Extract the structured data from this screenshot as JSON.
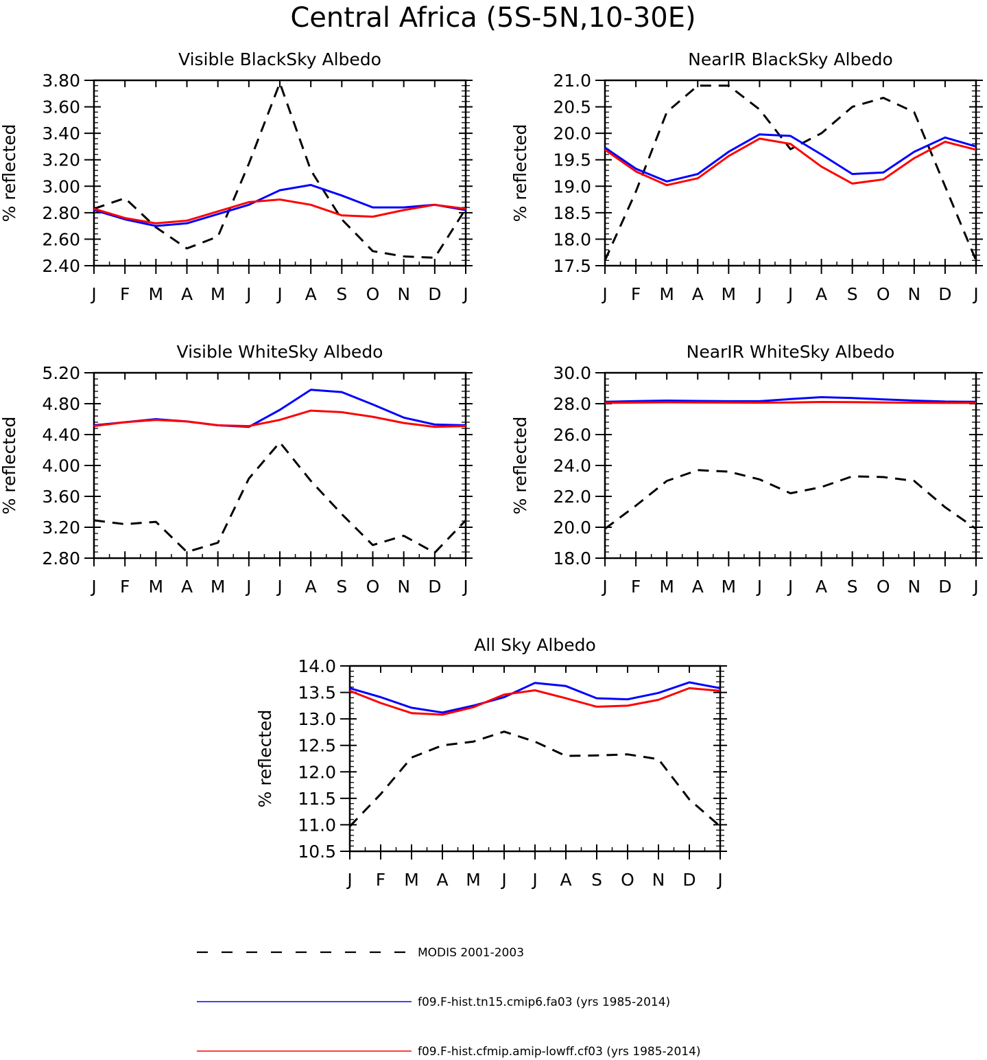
{
  "figure": {
    "title": "Central Africa (5S-5N,10-30E)"
  },
  "legend": [
    {
      "name": "MODIS 2001-2003",
      "color": "#000000",
      "style": "dashed"
    },
    {
      "name": "f09.F-hist.tn15.cmip6.fa03 (yrs 1985-2014)",
      "color": "#0000ff",
      "style": "solid"
    },
    {
      "name": "f09.F-hist.cfmip.amip-lowff.cf03 (yrs 1985-2014)",
      "color": "#ff0000",
      "style": "solid"
    }
  ],
  "chart_data": [
    {
      "type": "line",
      "title": "Visible BlackSky Albedo",
      "ylabel": "% reflected",
      "categories": [
        "J",
        "F",
        "M",
        "A",
        "M",
        "J",
        "J",
        "A",
        "S",
        "O",
        "N",
        "D",
        "J"
      ],
      "ylim": [
        2.4,
        3.8
      ],
      "yticks": [
        "2.40",
        "2.60",
        "2.80",
        "3.00",
        "3.20",
        "3.40",
        "3.60",
        "3.80"
      ],
      "series": [
        {
          "name": "MODIS 2001-2003",
          "values": [
            2.83,
            2.91,
            2.69,
            2.53,
            2.62,
            3.17,
            3.78,
            3.12,
            2.75,
            2.51,
            2.47,
            2.46,
            2.83
          ]
        },
        {
          "name": "f09.F-hist.tn15.cmip6.fa03 (yrs 1985-2014)",
          "values": [
            2.82,
            2.75,
            2.7,
            2.72,
            2.79,
            2.86,
            2.97,
            3.01,
            2.93,
            2.84,
            2.84,
            2.86,
            2.82
          ]
        },
        {
          "name": "f09.F-hist.cfmip.amip-lowff.cf03 (yrs 1985-2014)",
          "values": [
            2.83,
            2.76,
            2.72,
            2.74,
            2.81,
            2.88,
            2.9,
            2.86,
            2.78,
            2.77,
            2.82,
            2.86,
            2.83
          ]
        }
      ]
    },
    {
      "type": "line",
      "title": "NearIR BlackSky Albedo",
      "ylabel": "% reflected",
      "categories": [
        "J",
        "F",
        "M",
        "A",
        "M",
        "J",
        "J",
        "A",
        "S",
        "O",
        "N",
        "D",
        "J"
      ],
      "ylim": [
        17.5,
        21.0
      ],
      "yticks": [
        "17.5",
        "18.0",
        "18.5",
        "19.0",
        "19.5",
        "20.0",
        "20.5",
        "21.0"
      ],
      "series": [
        {
          "name": "MODIS 2001-2003",
          "values": [
            17.6,
            18.9,
            20.4,
            20.9,
            20.9,
            20.45,
            19.7,
            20.0,
            20.5,
            20.67,
            20.4,
            19.0,
            17.6
          ]
        },
        {
          "name": "f09.F-hist.tn15.cmip6.fa03 (yrs 1985-2014)",
          "values": [
            19.73,
            19.33,
            19.09,
            19.23,
            19.65,
            19.98,
            19.95,
            19.6,
            19.23,
            19.26,
            19.65,
            19.92,
            19.75
          ]
        },
        {
          "name": "f09.F-hist.cfmip.amip-lowff.cf03 (yrs 1985-2014)",
          "values": [
            19.69,
            19.28,
            19.02,
            19.15,
            19.57,
            19.9,
            19.8,
            19.37,
            19.05,
            19.13,
            19.53,
            19.84,
            19.69
          ]
        }
      ]
    },
    {
      "type": "line",
      "title": "Visible WhiteSky Albedo",
      "ylabel": "% reflected",
      "categories": [
        "J",
        "F",
        "M",
        "A",
        "M",
        "J",
        "J",
        "A",
        "S",
        "O",
        "N",
        "D",
        "J"
      ],
      "ylim": [
        2.8,
        5.2
      ],
      "yticks": [
        "2.80",
        "3.20",
        "3.60",
        "4.00",
        "4.40",
        "4.80",
        "5.20"
      ],
      "series": [
        {
          "name": "MODIS 2001-2003",
          "values": [
            3.29,
            3.24,
            3.27,
            2.88,
            3.0,
            3.83,
            4.3,
            3.8,
            3.37,
            2.97,
            3.09,
            2.87,
            3.29
          ]
        },
        {
          "name": "f09.F-hist.tn15.cmip6.fa03 (yrs 1985-2014)",
          "values": [
            4.52,
            4.56,
            4.6,
            4.57,
            4.52,
            4.5,
            4.72,
            4.98,
            4.95,
            4.79,
            4.62,
            4.53,
            4.52
          ]
        },
        {
          "name": "f09.F-hist.cfmip.amip-lowff.cf03 (yrs 1985-2014)",
          "values": [
            4.51,
            4.56,
            4.59,
            4.57,
            4.52,
            4.51,
            4.59,
            4.71,
            4.69,
            4.63,
            4.55,
            4.5,
            4.51
          ]
        }
      ]
    },
    {
      "type": "line",
      "title": "NearIR WhiteSky Albedo",
      "ylabel": "% reflected",
      "categories": [
        "J",
        "F",
        "M",
        "A",
        "M",
        "J",
        "J",
        "A",
        "S",
        "O",
        "N",
        "D",
        "J"
      ],
      "ylim": [
        18.0,
        30.0
      ],
      "yticks": [
        "18.0",
        "20.0",
        "22.0",
        "24.0",
        "26.0",
        "28.0",
        "30.0"
      ],
      "series": [
        {
          "name": "MODIS 2001-2003",
          "values": [
            19.9,
            21.4,
            23.0,
            23.7,
            23.6,
            23.1,
            22.2,
            22.6,
            23.3,
            23.25,
            23.0,
            21.3,
            19.9
          ]
        },
        {
          "name": "f09.F-hist.tn15.cmip6.fa03 (yrs 1985-2014)",
          "values": [
            28.12,
            28.17,
            28.2,
            28.18,
            28.16,
            28.16,
            28.3,
            28.42,
            28.37,
            28.28,
            28.2,
            28.14,
            28.12
          ]
        },
        {
          "name": "f09.F-hist.cfmip.amip-lowff.cf03 (yrs 1985-2014)",
          "values": [
            28.05,
            28.07,
            28.09,
            28.08,
            28.07,
            28.06,
            28.08,
            28.11,
            28.1,
            28.08,
            28.06,
            28.05,
            28.05
          ]
        }
      ]
    },
    {
      "type": "line",
      "title": "All Sky Albedo",
      "ylabel": "% reflected",
      "categories": [
        "J",
        "F",
        "M",
        "A",
        "M",
        "J",
        "J",
        "A",
        "S",
        "O",
        "N",
        "D",
        "J"
      ],
      "ylim": [
        10.5,
        14.0
      ],
      "yticks": [
        "10.5",
        "11.0",
        "11.5",
        "12.0",
        "12.5",
        "13.0",
        "13.5",
        "14.0"
      ],
      "series": [
        {
          "name": "MODIS 2001-2003",
          "values": [
            10.97,
            11.58,
            12.27,
            12.5,
            12.57,
            12.76,
            12.57,
            12.3,
            12.31,
            12.33,
            12.24,
            11.48,
            10.97
          ]
        },
        {
          "name": "f09.F-hist.tn15.cmip6.fa03 (yrs 1985-2014)",
          "values": [
            13.58,
            13.41,
            13.21,
            13.12,
            13.25,
            13.41,
            13.68,
            13.62,
            13.39,
            13.37,
            13.49,
            13.69,
            13.58
          ]
        },
        {
          "name": "f09.F-hist.cfmip.amip-lowff.cf03 (yrs 1985-2014)",
          "values": [
            13.53,
            13.3,
            13.11,
            13.08,
            13.22,
            13.46,
            13.54,
            13.39,
            13.23,
            13.25,
            13.36,
            13.58,
            13.53
          ]
        }
      ]
    }
  ]
}
